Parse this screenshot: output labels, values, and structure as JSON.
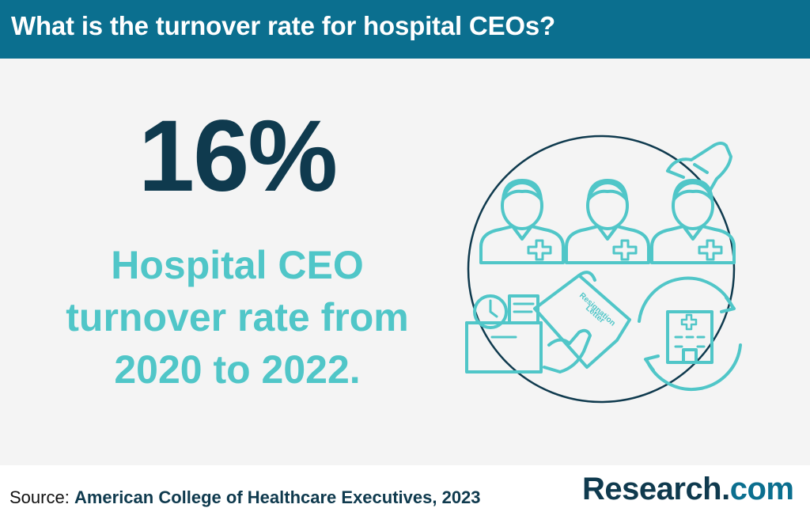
{
  "header": {
    "title": "What is the turnover rate for hospital CEOs?"
  },
  "stat": {
    "value": "16%",
    "caption_lines": [
      "Hospital CEO",
      "turnover rate from",
      "2020 to 2022."
    ]
  },
  "illustration": {
    "letter_line1": "Resignation",
    "letter_line2": "Letter"
  },
  "footer": {
    "source_label": "Source:",
    "source_org": "American College of Healthcare Executives, 2023",
    "brand_name": "Research",
    "brand_dot": ".",
    "brand_tld": "com"
  },
  "colors": {
    "header": "#0b6f8f",
    "stat": "#0f3a4e",
    "accent": "#50c6c8",
    "panel": "#f4f4f4"
  }
}
